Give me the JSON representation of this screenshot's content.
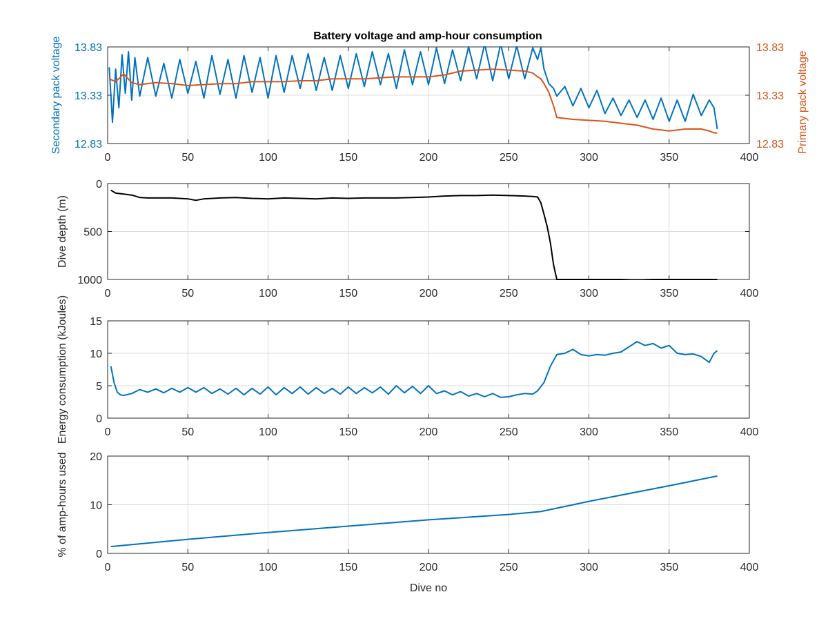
{
  "figure": {
    "title": "Battery voltage and amp-hour consumption"
  },
  "chart_data": [
    {
      "type": "line",
      "title": "Battery voltage and amp-hour consumption",
      "xlabel": "",
      "ylabel_left": "Secondary pack voltage",
      "ylabel_right": "Primary pack voltage",
      "xlim": [
        0,
        400
      ],
      "ylim_left": [
        12.83,
        13.83
      ],
      "ylim_right": [
        12.83,
        13.83
      ],
      "xticks": [
        0,
        50,
        100,
        150,
        200,
        250,
        300,
        350,
        400
      ],
      "yticks_left": [
        "12.83",
        "13.33",
        "13.83"
      ],
      "yticks_right": [
        "12.83",
        "13.33",
        "13.83"
      ],
      "grid": true,
      "colors": {
        "left": "#0072BD",
        "right": "#D95319"
      },
      "series": [
        {
          "axis": "left",
          "color": "#0072BD",
          "x": [
            1,
            3,
            5,
            7,
            9,
            11,
            13,
            15,
            17,
            20,
            25,
            30,
            35,
            40,
            45,
            50,
            55,
            60,
            65,
            70,
            75,
            80,
            85,
            90,
            95,
            100,
            105,
            110,
            115,
            120,
            125,
            130,
            135,
            140,
            145,
            150,
            155,
            160,
            165,
            170,
            175,
            180,
            185,
            190,
            195,
            200,
            205,
            210,
            215,
            220,
            225,
            230,
            235,
            240,
            245,
            250,
            255,
            260,
            265,
            268,
            270,
            272,
            275,
            278,
            280,
            285,
            290,
            295,
            300,
            305,
            310,
            315,
            320,
            325,
            330,
            335,
            340,
            345,
            350,
            355,
            360,
            365,
            370,
            375,
            378,
            380
          ],
          "y": [
            13.62,
            13.05,
            13.6,
            13.2,
            13.75,
            13.35,
            13.78,
            13.28,
            13.72,
            13.32,
            13.72,
            13.32,
            13.66,
            13.3,
            13.7,
            13.35,
            13.68,
            13.3,
            13.74,
            13.34,
            13.7,
            13.3,
            13.74,
            13.36,
            13.72,
            13.3,
            13.74,
            13.36,
            13.74,
            13.4,
            13.76,
            13.38,
            13.72,
            13.38,
            13.74,
            13.4,
            13.76,
            13.42,
            13.78,
            13.44,
            13.76,
            13.4,
            13.8,
            13.44,
            13.78,
            13.44,
            13.82,
            13.45,
            13.8,
            13.48,
            13.83,
            13.5,
            13.86,
            13.48,
            13.86,
            13.5,
            13.84,
            13.5,
            13.82,
            13.7,
            13.82,
            13.6,
            13.45,
            13.4,
            13.32,
            13.42,
            13.22,
            13.4,
            13.2,
            13.38,
            13.14,
            13.3,
            13.12,
            13.28,
            13.1,
            13.28,
            13.08,
            13.3,
            13.06,
            13.28,
            13.06,
            13.34,
            13.12,
            13.28,
            13.2,
            12.98
          ]
        },
        {
          "axis": "right",
          "color": "#D95319",
          "x": [
            1,
            5,
            10,
            15,
            20,
            30,
            40,
            50,
            60,
            70,
            80,
            90,
            100,
            110,
            120,
            130,
            140,
            150,
            160,
            170,
            180,
            190,
            200,
            210,
            220,
            230,
            240,
            250,
            260,
            265,
            268,
            270,
            272,
            275,
            278,
            280,
            290,
            300,
            310,
            320,
            330,
            340,
            350,
            360,
            370,
            375,
            378,
            380
          ],
          "y": [
            13.5,
            13.47,
            13.55,
            13.46,
            13.44,
            13.46,
            13.45,
            13.43,
            13.44,
            13.45,
            13.45,
            13.47,
            13.47,
            13.47,
            13.48,
            13.48,
            13.5,
            13.5,
            13.5,
            13.51,
            13.52,
            13.52,
            13.52,
            13.54,
            13.58,
            13.59,
            13.6,
            13.59,
            13.58,
            13.56,
            13.52,
            13.5,
            13.45,
            13.36,
            13.22,
            13.1,
            13.08,
            13.07,
            13.06,
            13.04,
            13.02,
            12.98,
            12.96,
            12.98,
            12.98,
            12.96,
            12.94,
            12.94
          ]
        }
      ]
    },
    {
      "type": "line",
      "title": "",
      "xlabel": "",
      "ylabel": "Dive depth (m)",
      "xlim": [
        0,
        400
      ],
      "ylim": [
        0,
        1000
      ],
      "y_reversed": true,
      "xticks": [
        0,
        50,
        100,
        150,
        200,
        250,
        300,
        350,
        400
      ],
      "yticks": [
        "0",
        "500",
        "1000"
      ],
      "grid": true,
      "series": [
        {
          "color": "#000000",
          "x": [
            2,
            5,
            10,
            15,
            20,
            25,
            30,
            40,
            50,
            55,
            60,
            70,
            80,
            90,
            100,
            110,
            120,
            130,
            140,
            150,
            160,
            170,
            180,
            190,
            200,
            210,
            220,
            230,
            240,
            250,
            260,
            265,
            268,
            270,
            272,
            274,
            276,
            278,
            280,
            290,
            300,
            310,
            320,
            330,
            340,
            350,
            360,
            370,
            380
          ],
          "y": [
            70,
            100,
            110,
            120,
            145,
            150,
            150,
            150,
            160,
            175,
            160,
            150,
            145,
            155,
            160,
            150,
            155,
            160,
            150,
            155,
            150,
            150,
            150,
            145,
            140,
            130,
            125,
            125,
            120,
            125,
            130,
            135,
            140,
            200,
            320,
            450,
            620,
            850,
            1000,
            1000,
            1000,
            1000,
            1000,
            1005,
            1000,
            1000,
            1000,
            1000,
            1000
          ]
        }
      ]
    },
    {
      "type": "line",
      "title": "",
      "xlabel": "",
      "ylabel": "Energy consumption (kJoules)",
      "xlim": [
        0,
        400
      ],
      "ylim": [
        0,
        15
      ],
      "xticks": [
        0,
        50,
        100,
        150,
        200,
        250,
        300,
        350,
        400
      ],
      "yticks": [
        "0",
        "5",
        "10",
        "15"
      ],
      "grid": true,
      "series": [
        {
          "color": "#0072BD",
          "x": [
            2,
            4,
            6,
            8,
            10,
            15,
            20,
            25,
            30,
            35,
            40,
            45,
            50,
            55,
            60,
            65,
            70,
            75,
            80,
            85,
            90,
            95,
            100,
            105,
            110,
            115,
            120,
            125,
            130,
            135,
            140,
            145,
            150,
            155,
            160,
            165,
            170,
            175,
            180,
            185,
            190,
            195,
            200,
            205,
            210,
            215,
            220,
            225,
            230,
            235,
            240,
            245,
            250,
            255,
            260,
            265,
            268,
            272,
            276,
            280,
            285,
            290,
            295,
            300,
            305,
            310,
            315,
            320,
            325,
            330,
            335,
            340,
            345,
            350,
            355,
            360,
            365,
            370,
            375,
            378,
            380
          ],
          "y": [
            8.0,
            5.5,
            4.0,
            3.6,
            3.5,
            3.8,
            4.4,
            4.0,
            4.5,
            3.9,
            4.6,
            4.0,
            4.7,
            4.0,
            4.7,
            3.8,
            4.5,
            3.7,
            4.6,
            3.6,
            4.6,
            3.7,
            4.8,
            3.6,
            4.7,
            3.8,
            4.8,
            3.7,
            4.7,
            3.8,
            4.6,
            3.7,
            4.8,
            3.8,
            4.7,
            3.9,
            4.8,
            3.7,
            5.0,
            3.9,
            4.9,
            3.8,
            5.0,
            3.8,
            4.2,
            3.6,
            4.1,
            3.4,
            3.8,
            3.3,
            3.8,
            3.2,
            3.3,
            3.6,
            3.8,
            3.7,
            4.2,
            5.5,
            8.0,
            9.8,
            10.0,
            10.6,
            9.8,
            9.6,
            9.8,
            9.7,
            10.0,
            10.2,
            11.0,
            11.8,
            11.2,
            11.5,
            10.8,
            11.2,
            10.0,
            9.8,
            9.9,
            9.5,
            8.6,
            10.0,
            10.4
          ]
        }
      ]
    },
    {
      "type": "line",
      "title": "",
      "xlabel": "Dive no",
      "ylabel": "% of amp-hours used",
      "xlim": [
        0,
        400
      ],
      "ylim": [
        0,
        20
      ],
      "xticks": [
        0,
        50,
        100,
        150,
        200,
        250,
        300,
        350,
        400
      ],
      "yticks": [
        "0",
        "10",
        "20"
      ],
      "grid": true,
      "series": [
        {
          "color": "#0072BD",
          "x": [
            2,
            50,
            100,
            150,
            200,
            250,
            270,
            300,
            350,
            380
          ],
          "y": [
            1.4,
            2.9,
            4.3,
            5.6,
            6.9,
            8.0,
            8.6,
            10.7,
            13.9,
            15.9
          ]
        }
      ]
    }
  ]
}
